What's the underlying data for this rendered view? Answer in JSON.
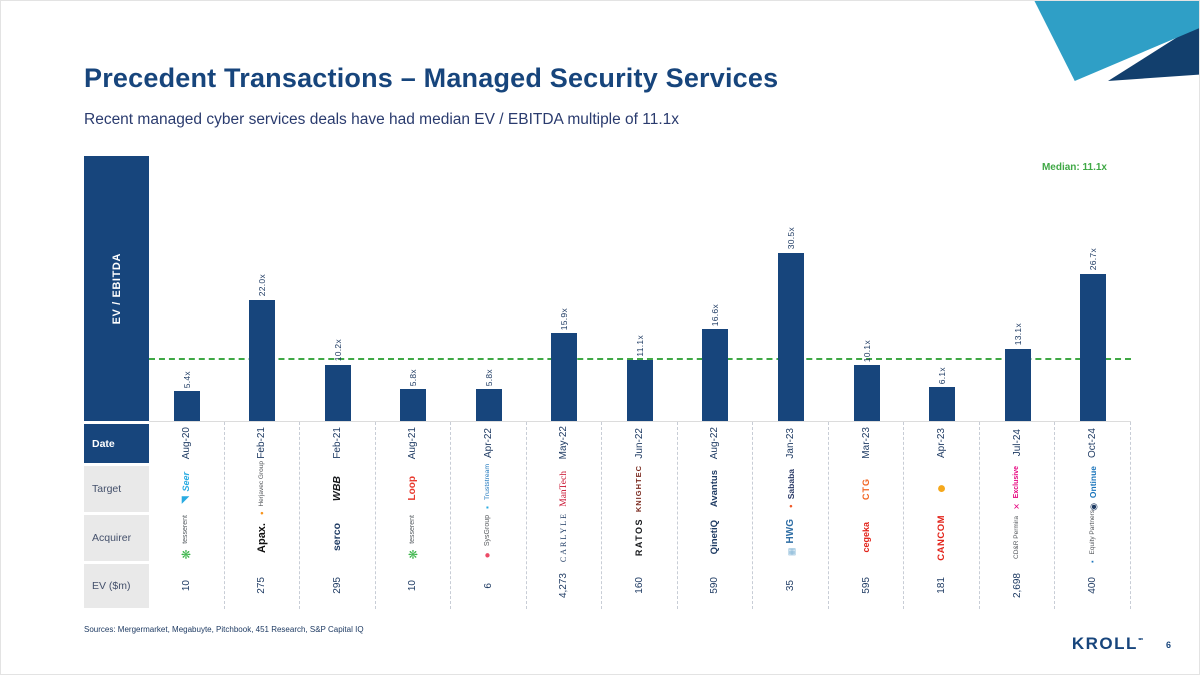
{
  "header": {
    "title": "Precedent Transactions – Managed Security Services",
    "subtitle": "Recent managed cyber services deals have had median EV / EBITDA multiple of 11.1x"
  },
  "chart_data": {
    "type": "bar",
    "title": "Precedent Transactions – Managed Security Services",
    "ylabel": "EV / EBITDA",
    "xlabel": "",
    "ylim": [
      0,
      48
    ],
    "grid": false,
    "median": 11.1,
    "median_label": "Median: 11.1x",
    "median_color": "#3FA845",
    "bar_color": "#17457C",
    "categories": [
      "Aug-20",
      "Feb-21",
      "Feb-21",
      "Aug-21",
      "Apr-22",
      "May-22",
      "Jun-22",
      "Aug-22",
      "Jan-23",
      "Mar-23",
      "Apr-23",
      "Jul-24",
      "Oct-24"
    ],
    "values": [
      5.4,
      22.0,
      10.2,
      5.8,
      5.8,
      15.9,
      11.1,
      16.6,
      30.5,
      10.1,
      6.1,
      13.1,
      26.7
    ],
    "value_labels": [
      "5.4x",
      "22.0x",
      "10.2x",
      "5.8x",
      "5.8x",
      "15.9x",
      "11.1x",
      "16.6x",
      "30.5x",
      "10.1x",
      "6.1x",
      "13.1x",
      "26.7x"
    ]
  },
  "table": {
    "row_labels": [
      "Date",
      "Target",
      "Acquirer",
      "EV ($m)"
    ],
    "deals": [
      {
        "ev": "10",
        "target": {
          "text": "Seer",
          "color": "#29ABE2",
          "bold": true,
          "italic": true,
          "size": 9,
          "icon": "swoosh",
          "icon_color": "#29ABE2",
          "icon_size": 10
        },
        "acquirer": {
          "text": "tesserent",
          "color": "#555B60",
          "size": 7,
          "icon": "leaf",
          "icon_color": "#3BB54A",
          "icon_size": 12
        }
      },
      {
        "ev": "275",
        "target": {
          "text": "Herjavec Group",
          "color": "#55585C",
          "size": 6.5,
          "icon": "dot",
          "icon_color": "#F7941D",
          "icon_size": 6
        },
        "acquirer": {
          "text": "Apax.",
          "color": "#101010",
          "bold": true,
          "size": 11
        }
      },
      {
        "ev": "295",
        "target": {
          "text": "WBB",
          "color": "#17191C",
          "bold": true,
          "italic": true,
          "size": 10.5
        },
        "acquirer": {
          "text": "serco",
          "color": "#1F3B63",
          "bold": true,
          "size": 10.5
        }
      },
      {
        "ev": "10",
        "target": {
          "text": "Loop",
          "color": "#E8392E",
          "bold": true,
          "size": 10
        },
        "acquirer": {
          "text": "tesserent",
          "color": "#555B60",
          "size": 7,
          "icon": "leaf",
          "icon_color": "#3BB54A",
          "icon_size": 12
        }
      },
      {
        "ev": "6",
        "target": {
          "text": "Truststream",
          "color": "#1B75BC",
          "size": 6.8,
          "icon": "square",
          "icon_color": "#29ABE2",
          "icon_size": 8
        },
        "acquirer": {
          "text": "SysGroup",
          "color": "#55585C",
          "size": 7,
          "icon": "circle",
          "icon_color": "#EC4B67",
          "icon_size": 10
        }
      },
      {
        "ev": "4,273",
        "target": {
          "text": "ManTech",
          "color": "#C8102E",
          "serif": true,
          "size": 9.5
        },
        "acquirer": {
          "text": "CARLYLE",
          "color": "#1F3B63",
          "serif": true,
          "size": 8,
          "ls": 2
        }
      },
      {
        "ev": "160",
        "target": {
          "text": "KNIGHTEC",
          "color": "#7B2B20",
          "bold": true,
          "size": 7.5,
          "ls": 1
        },
        "acquirer": {
          "text": "RATOS",
          "color": "#17191C",
          "bold": true,
          "size": 9,
          "ls": 1.5
        }
      },
      {
        "ev": "590",
        "target": {
          "text": "Avantus",
          "color": "#1F3B63",
          "bold": true,
          "size": 9.5
        },
        "acquirer": {
          "text": "QinetiQ",
          "color": "#1F3B63",
          "bold": true,
          "size": 9.5
        }
      },
      {
        "ev": "35",
        "target": {
          "text": "Sababa",
          "color": "#2B3A67",
          "bold": true,
          "size": 8.5,
          "icon": "dot",
          "icon_color": "#F05A28",
          "icon_size": 6
        },
        "acquirer": {
          "text": "HWG",
          "color": "#2E6DA4",
          "bold": true,
          "size": 10,
          "icon": "grid",
          "icon_color": "#7FB3D5",
          "icon_size": 9
        }
      },
      {
        "ev": "595",
        "target": {
          "text": "CTG",
          "color": "#F26522",
          "bold": true,
          "size": 9,
          "ls": 1
        },
        "acquirer": {
          "text": "cegeka",
          "color": "#E2231A",
          "bold": true,
          "size": 9
        }
      },
      {
        "ev": "181",
        "target": {
          "text": "",
          "icon": "circle",
          "icon_color": "#F5A81C",
          "icon_size": 16
        },
        "acquirer": {
          "text": "CANCOM",
          "color": "#E2231A",
          "bold": true,
          "size": 9.5,
          "ls": 0.5
        }
      },
      {
        "ev": "2,698",
        "target": {
          "text": "Exclusive",
          "color": "#E6007E",
          "bold": true,
          "size": 7,
          "icon": "x",
          "icon_color": "#E6007E",
          "icon_size": 8
        },
        "acquirer": {
          "text": "CD&R Permira",
          "color": "#55585C",
          "size": 6.5
        }
      },
      {
        "ev": "400",
        "target": {
          "text": "Ontinue",
          "color": "#1B75BC",
          "bold": true,
          "size": 8.5,
          "icon": "ring",
          "icon_color": "#1F3B63",
          "icon_size": 9
        },
        "acquirer": {
          "text": "Equity Partners",
          "color": "#55585C",
          "size": 6.5,
          "icon": "square",
          "icon_color": "#1B75BC",
          "icon_size": 7
        }
      }
    ]
  },
  "footer": {
    "sources": "Sources: Mergermarket, Megabuyte, Pitchbook, 451 Research, S&P Capital IQ",
    "brand": "KROLL",
    "brand_mark": "℠",
    "page_number": "6"
  }
}
